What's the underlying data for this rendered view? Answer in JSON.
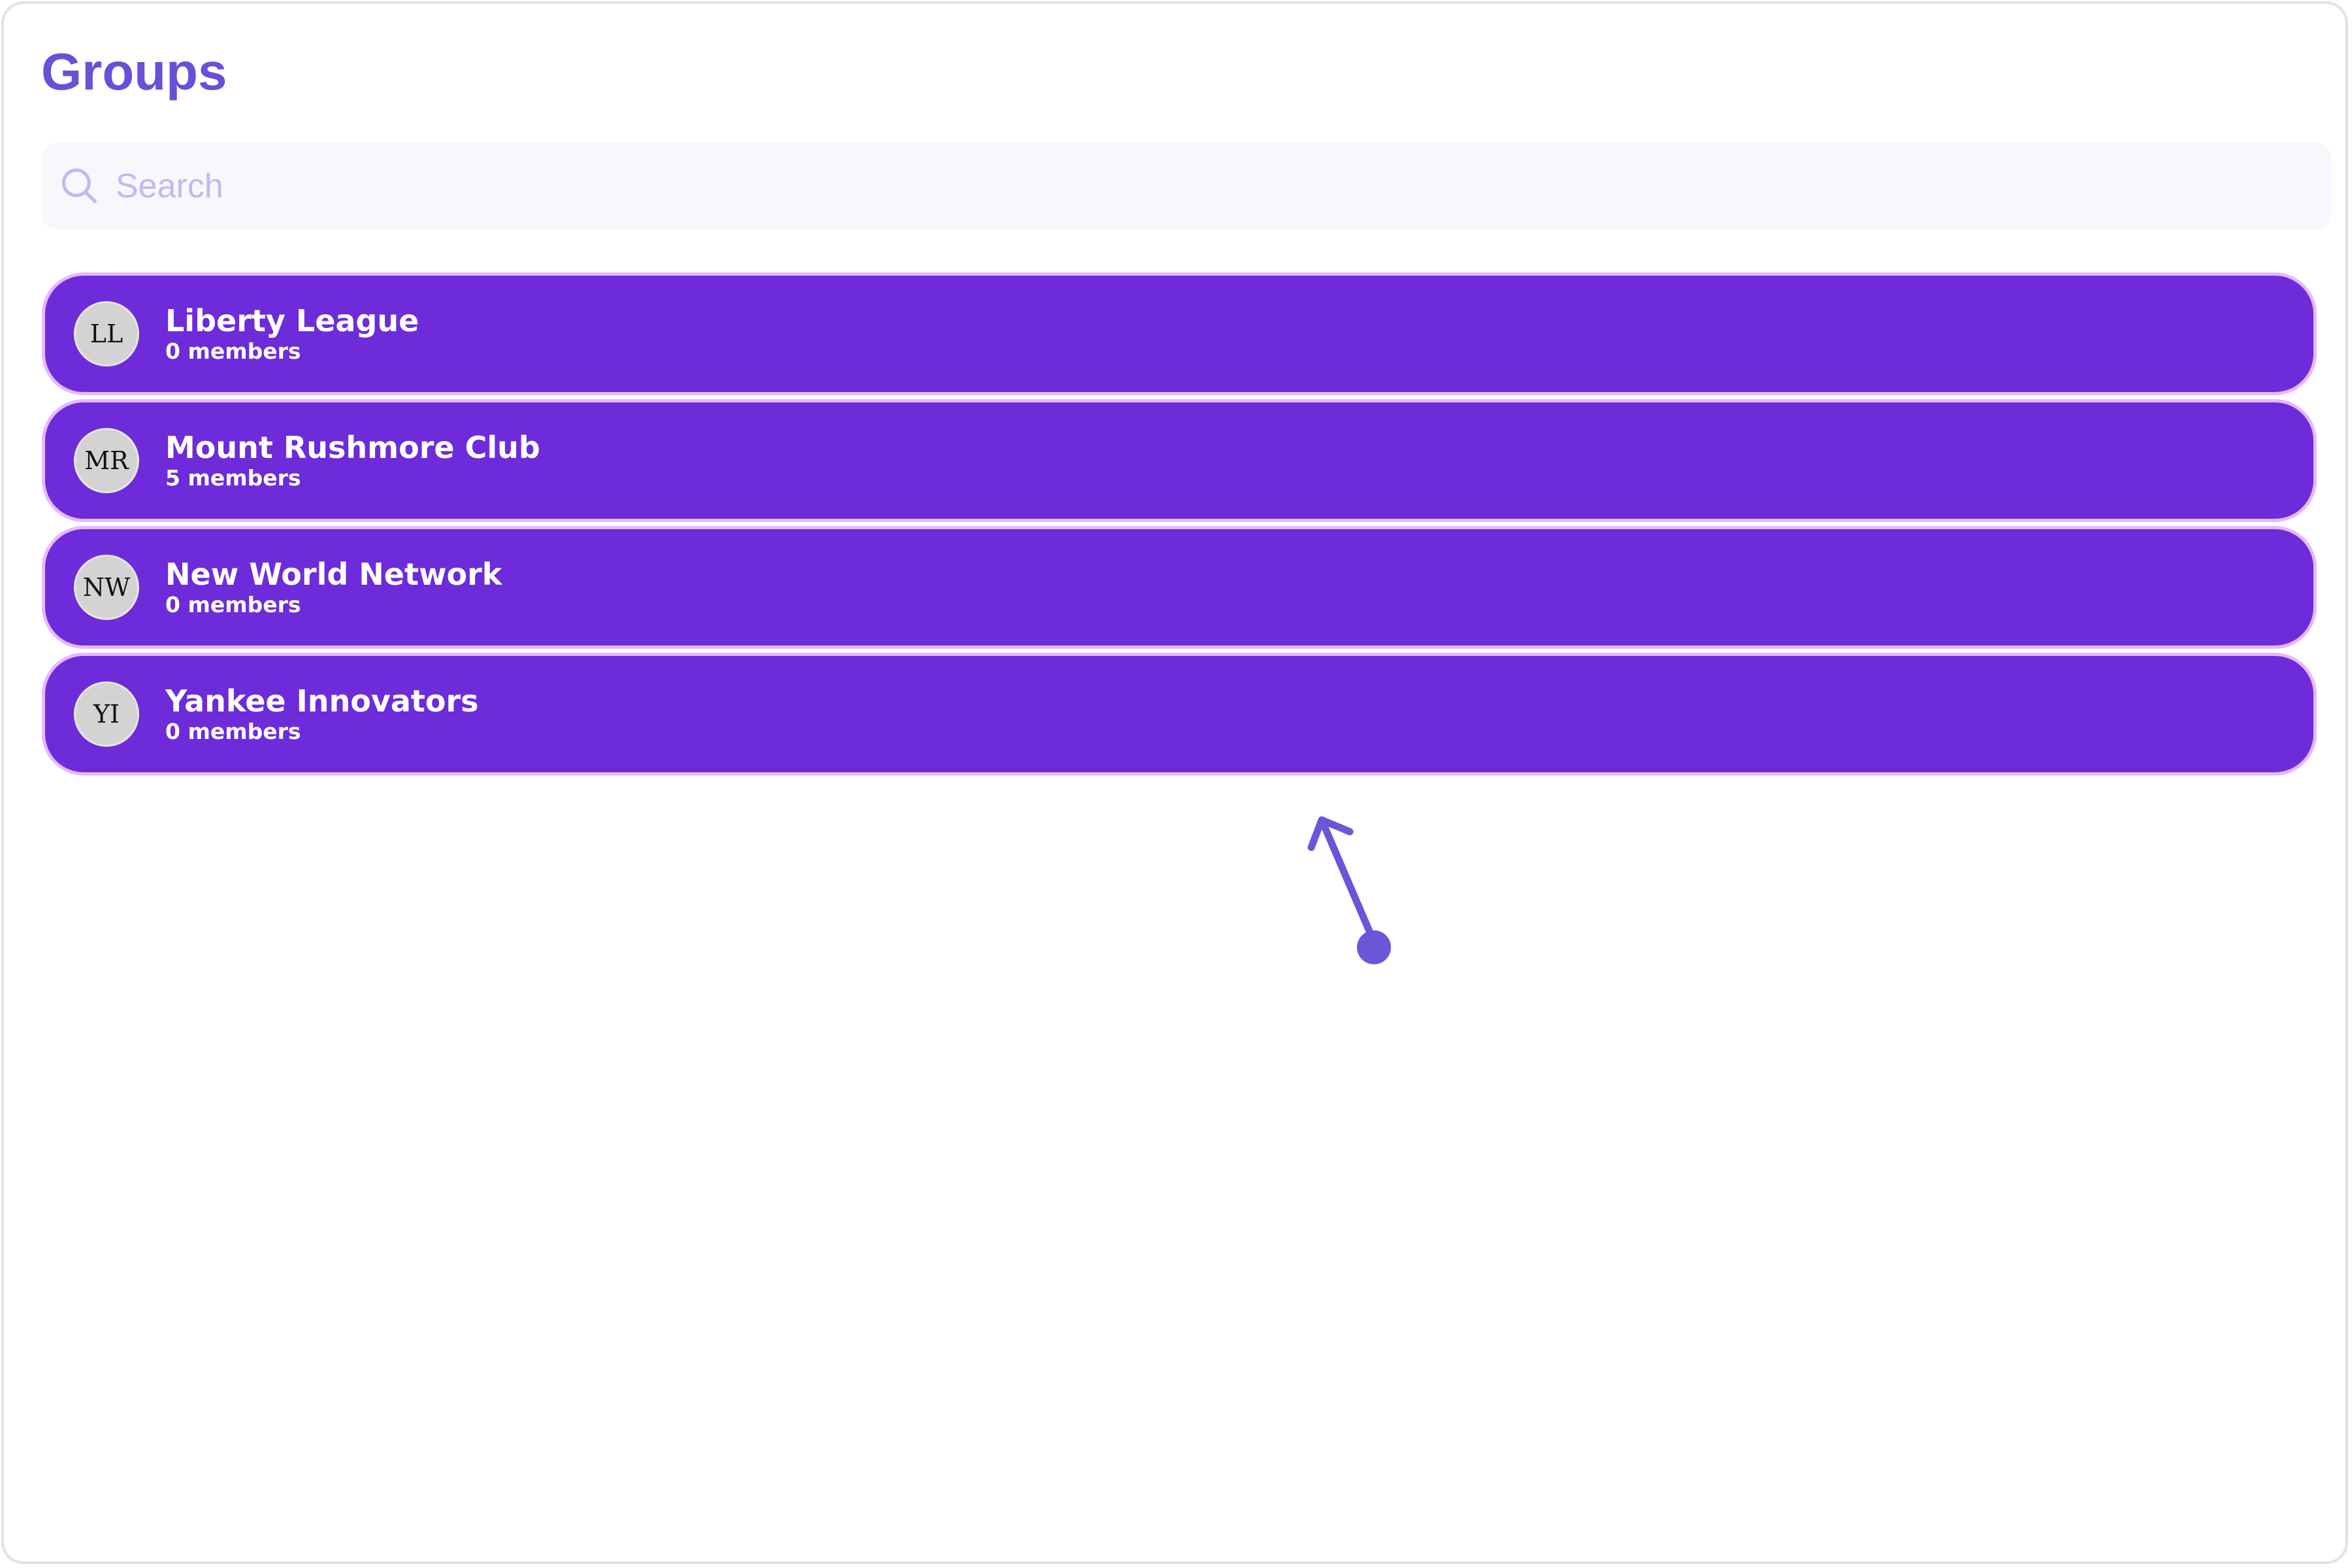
{
  "header": {
    "title": "Groups"
  },
  "search": {
    "placeholder": "Search",
    "value": "",
    "icon": "search-icon"
  },
  "groups": [
    {
      "initials": "LL",
      "name": "Liberty League",
      "members": "0 members"
    },
    {
      "initials": "MR",
      "name": "Mount Rushmore Club",
      "members": "5 members"
    },
    {
      "initials": "NW",
      "name": "New World Network",
      "members": "0 members"
    },
    {
      "initials": "YI",
      "name": "Yankee Innovators",
      "members": "0 members"
    }
  ],
  "gesture": {
    "type": "swipe-up",
    "color": "#6a56d8"
  },
  "colors": {
    "accent": "#6a4fd8",
    "row_bg": "#6d2bda",
    "row_border": "#e8b8fa"
  }
}
